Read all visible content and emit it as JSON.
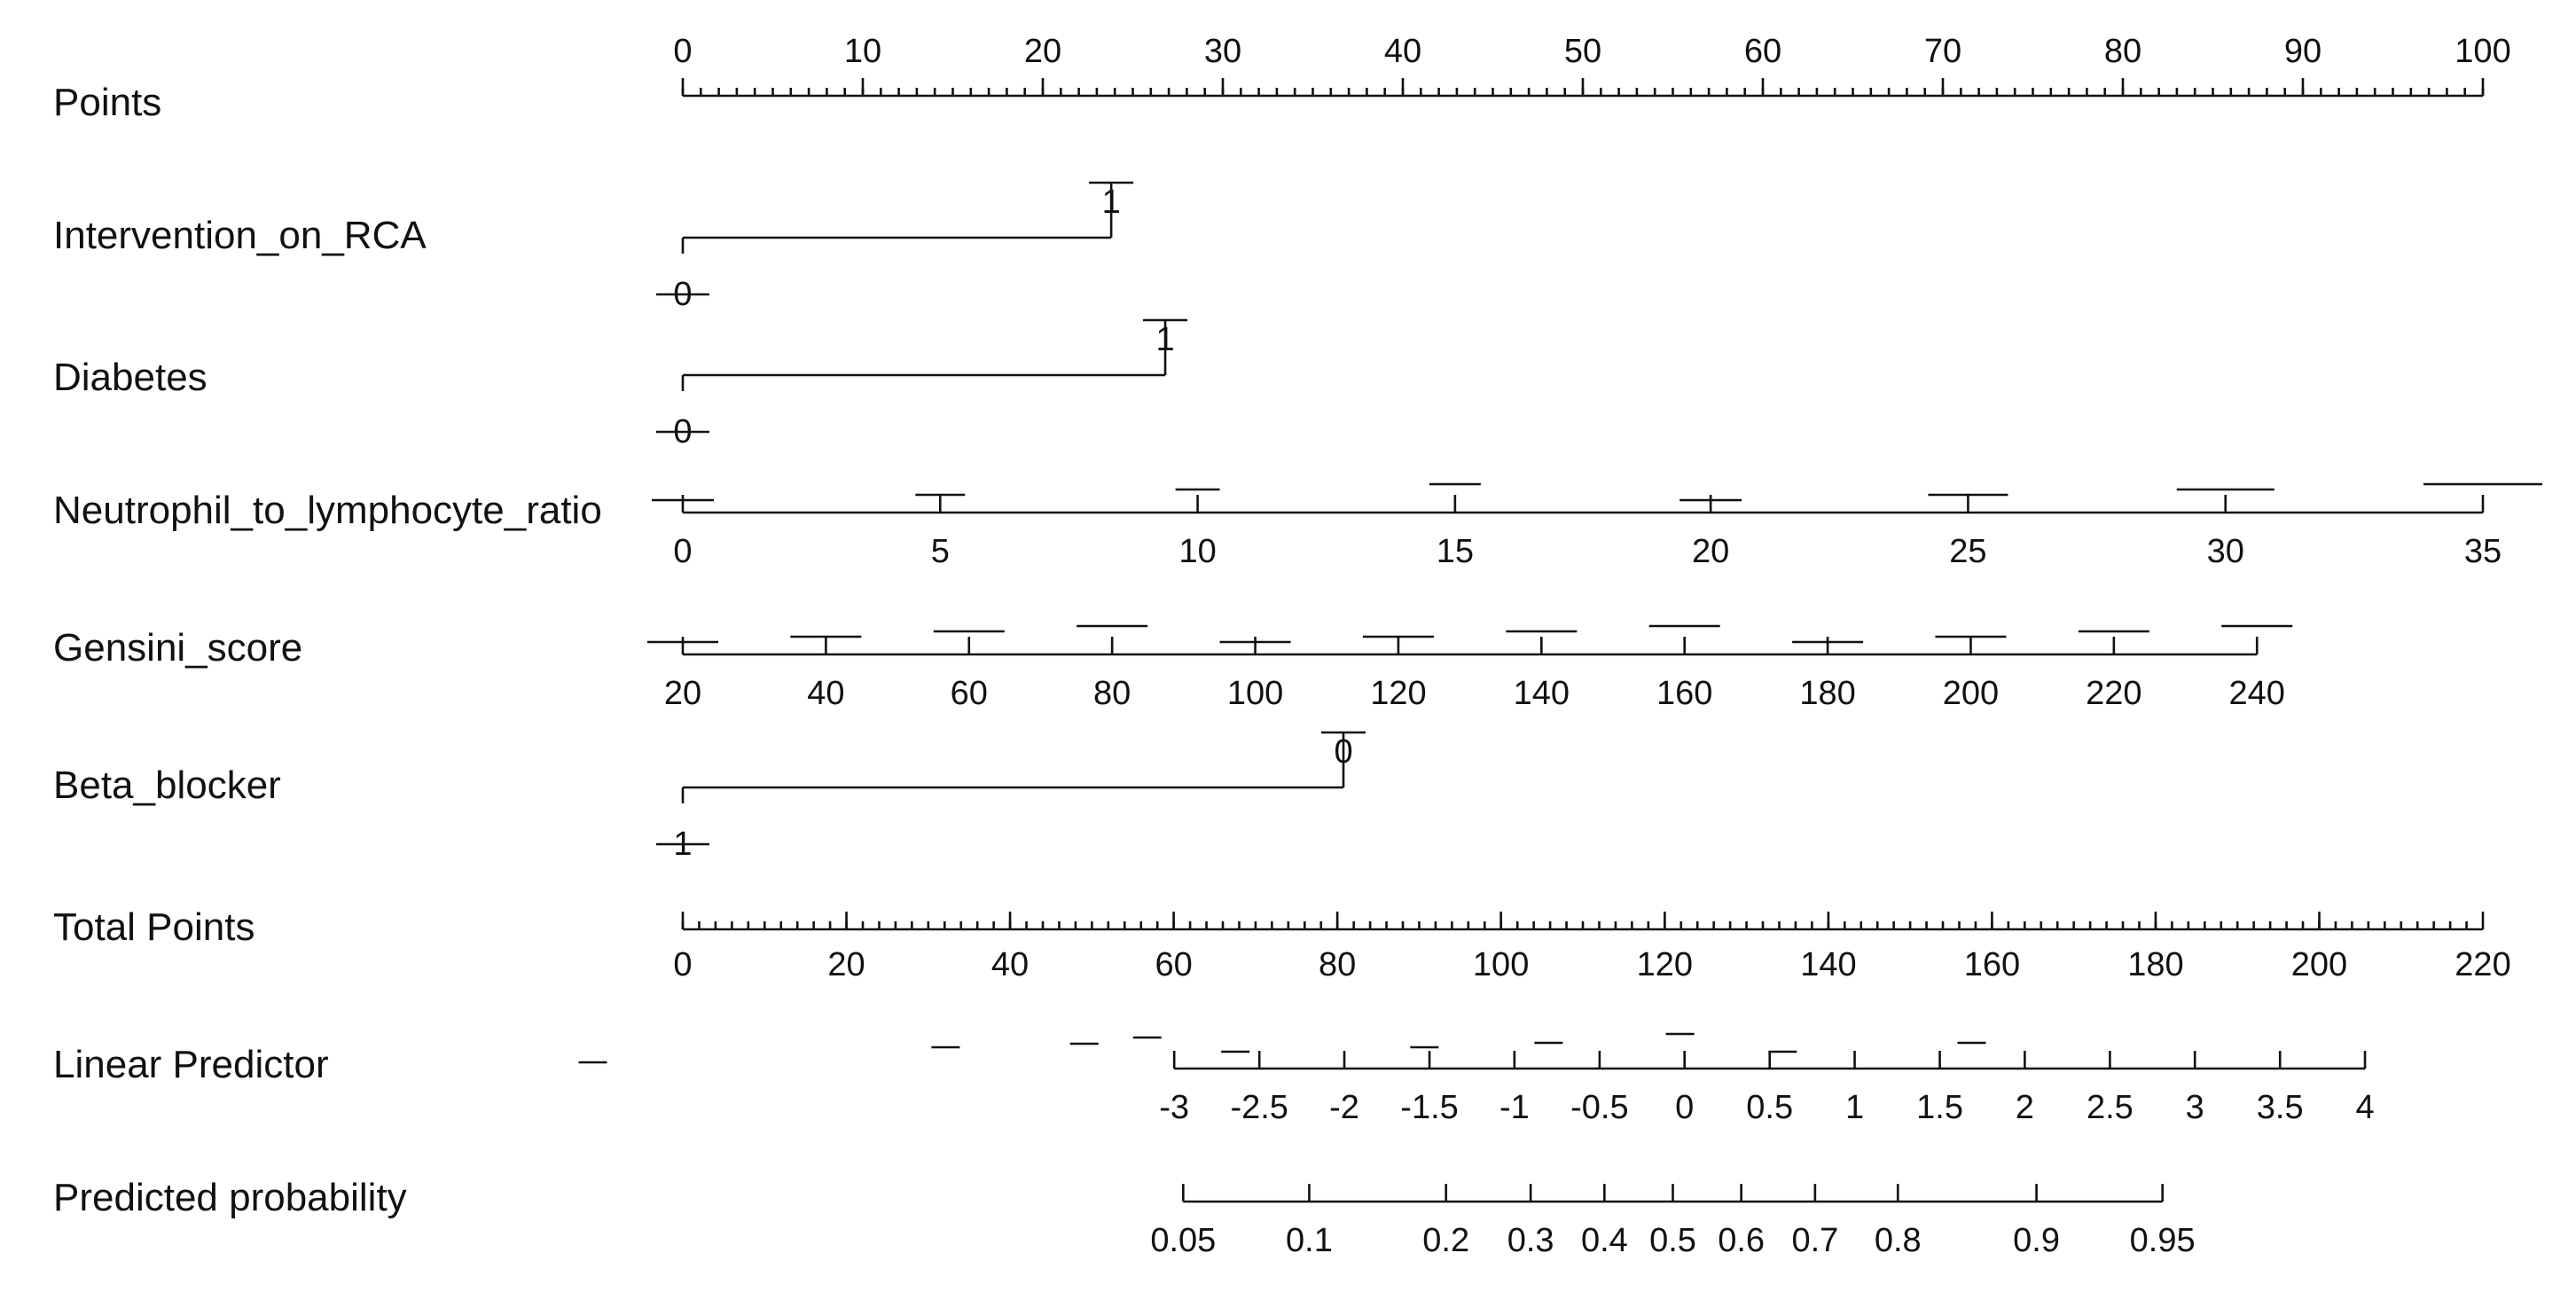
{
  "chart_data": {
    "type": "nomogram",
    "rows": [
      {
        "name": "Points",
        "kind": "points",
        "label": "Points",
        "ticks": [
          0,
          10,
          20,
          30,
          40,
          50,
          60,
          70,
          80,
          90,
          100
        ],
        "tick_labels": [
          "0",
          "10",
          "20",
          "30",
          "40",
          "50",
          "60",
          "70",
          "80",
          "90",
          "100"
        ],
        "points_at_ticks": [
          0,
          10,
          20,
          30,
          40,
          50,
          60,
          70,
          80,
          90,
          100
        ],
        "minor_step": 1
      },
      {
        "name": "Intervention_on_RCA",
        "kind": "binary",
        "label": "Intervention_on_RCA",
        "levels": [
          {
            "label": "0",
            "points": 0
          },
          {
            "label": "1",
            "points": 23.8
          }
        ]
      },
      {
        "name": "Diabetes",
        "kind": "binary",
        "label": "Diabetes",
        "levels": [
          {
            "label": "0",
            "points": 0
          },
          {
            "label": "1",
            "points": 26.8
          }
        ]
      },
      {
        "name": "Neutrophil_to_lymphocyte_ratio",
        "kind": "continuous",
        "label": "Neutrophil_to_lymphocyte_ratio",
        "tick_labels": [
          "0",
          "5",
          "10",
          "15",
          "20",
          "25",
          "30",
          "35"
        ],
        "points_at_ticks": [
          0,
          14.3,
          28.6,
          42.9,
          57.1,
          71.4,
          85.7,
          100
        ]
      },
      {
        "name": "Gensini_score",
        "kind": "continuous",
        "label": "Gensini_score",
        "tick_labels": [
          "20",
          "40",
          "60",
          "80",
          "100",
          "120",
          "140",
          "160",
          "180",
          "200",
          "220",
          "240"
        ],
        "points_at_ticks": [
          0,
          7.95,
          15.9,
          23.85,
          31.8,
          39.75,
          47.7,
          55.65,
          63.6,
          71.55,
          79.5,
          87.45
        ]
      },
      {
        "name": "Beta_blocker",
        "kind": "binary",
        "label": "Beta_blocker",
        "levels": [
          {
            "label": "1",
            "points": 0
          },
          {
            "label": "0",
            "points": 36.7
          }
        ]
      },
      {
        "name": "Total Points",
        "kind": "total",
        "label": "Total Points",
        "tick_labels": [
          "0",
          "20",
          "40",
          "60",
          "80",
          "100",
          "120",
          "140",
          "160",
          "180",
          "200",
          "220"
        ],
        "points_at_ticks": [
          0,
          9.09,
          18.18,
          27.27,
          36.36,
          45.45,
          54.55,
          63.64,
          72.73,
          81.82,
          90.91,
          100
        ],
        "minor_step": 0.9091
      },
      {
        "name": "Linear Predictor",
        "kind": "continuous",
        "label": "Linear Predictor",
        "tick_labels": [
          "-3",
          "-2.5",
          "-2",
          "-1.5",
          "-1",
          "-0.5",
          "0",
          "0.5",
          "1",
          "1.5",
          "2",
          "2.5",
          "3",
          "3.5",
          "4"
        ],
        "points_at_ticks": [
          27.3,
          32.03,
          36.75,
          41.48,
          46.2,
          50.93,
          55.65,
          60.38,
          65.1,
          69.83,
          74.55,
          79.28,
          84.0,
          88.73,
          93.45
        ]
      },
      {
        "name": "Predicted probability",
        "kind": "continuous",
        "label": "Predicted probability",
        "tick_labels": [
          "0.05",
          "0.1",
          "0.2",
          "0.3",
          "0.4",
          "0.5",
          "0.6",
          "0.7",
          "0.8",
          "0.9",
          "0.95"
        ],
        "points_at_ticks": [
          27.8,
          34.8,
          42.4,
          47.1,
          51.2,
          55.0,
          58.8,
          62.9,
          67.5,
          75.2,
          82.2
        ]
      }
    ]
  }
}
